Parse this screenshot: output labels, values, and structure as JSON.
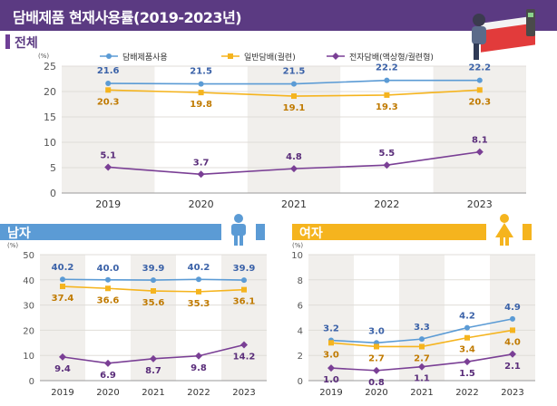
{
  "title": "담배제품 현재사용률(2019-2023년)",
  "sections": {
    "overall": "전체",
    "male": "남자",
    "female": "여자"
  },
  "colors": {
    "header": "#5b3a82",
    "male_bar": "#5b9bd5",
    "female_bar": "#f5b41e",
    "tobacco": "#5b9bd5",
    "cigarette": "#f5b41e",
    "ecig": "#7a3f95"
  },
  "legend": [
    "담배제품사용",
    "일반담배(궐련)",
    "전자담배(액상형/궐련형)"
  ],
  "chart_data": [
    {
      "id": "overall",
      "type": "line",
      "title": "전체",
      "unit": "(%)",
      "categories": [
        "2019",
        "2020",
        "2021",
        "2022",
        "2023"
      ],
      "ylim": [
        0,
        25
      ],
      "yticks": [
        "0",
        "5",
        "10",
        "15",
        "20",
        "25"
      ],
      "series": [
        {
          "name": "담배제품사용",
          "values": [
            21.6,
            21.5,
            21.5,
            22.2,
            22.2
          ],
          "labels": [
            "21.6",
            "21.5",
            "21.5",
            "22.2",
            "22.2"
          ]
        },
        {
          "name": "일반담배(궐련)",
          "values": [
            20.3,
            19.8,
            19.1,
            19.3,
            20.3
          ],
          "labels": [
            "20.3",
            "19.8",
            "19.1",
            "19.3",
            "20.3"
          ]
        },
        {
          "name": "전자담배(액상형/궐련형)",
          "values": [
            5.1,
            3.7,
            4.8,
            5.5,
            8.1
          ],
          "labels": [
            "5.1",
            "3.7",
            "4.8",
            "5.5",
            "8.1"
          ]
        }
      ]
    },
    {
      "id": "male",
      "type": "line",
      "title": "남자",
      "unit": "(%)",
      "categories": [
        "2019",
        "2020",
        "2021",
        "2022",
        "2023"
      ],
      "ylim": [
        0,
        50
      ],
      "yticks": [
        "0",
        "10",
        "20",
        "30",
        "40",
        "50"
      ],
      "series": [
        {
          "name": "담배제품사용",
          "values": [
            40.2,
            40.0,
            39.9,
            40.2,
            39.9
          ],
          "labels": [
            "40.2",
            "40.0",
            "39.9",
            "40.2",
            "39.9"
          ]
        },
        {
          "name": "일반담배(궐련)",
          "values": [
            37.4,
            36.6,
            35.6,
            35.3,
            36.1
          ],
          "labels": [
            "37.4",
            "36.6",
            "35.6",
            "35.3",
            "36.1"
          ]
        },
        {
          "name": "전자담배(액상형/궐련형)",
          "values": [
            9.4,
            6.9,
            8.7,
            9.8,
            14.2
          ],
          "labels": [
            "9.4",
            "6.9",
            "8.7",
            "9.8",
            "14.2"
          ]
        }
      ]
    },
    {
      "id": "female",
      "type": "line",
      "title": "여자",
      "unit": "(%)",
      "categories": [
        "2019",
        "2020",
        "2021",
        "2022",
        "2023"
      ],
      "ylim": [
        0,
        10
      ],
      "yticks": [
        "0",
        "2",
        "4",
        "6",
        "8",
        "10"
      ],
      "series": [
        {
          "name": "담배제품사용",
          "values": [
            3.2,
            3.0,
            3.3,
            4.2,
            4.9
          ],
          "labels": [
            "3.2",
            "3.0",
            "3.3",
            "4.2",
            "4.9"
          ]
        },
        {
          "name": "일반담배(궐련)",
          "values": [
            3.0,
            2.7,
            2.7,
            3.4,
            4.0
          ],
          "labels": [
            "3.0",
            "2.7",
            "2.7",
            "3.4",
            "4.0"
          ]
        },
        {
          "name": "전자담배(액상형/궐련형)",
          "values": [
            1.0,
            0.8,
            1.1,
            1.5,
            2.1
          ],
          "labels": [
            "1.0",
            "0.8",
            "1.1",
            "1.5",
            "2.1"
          ]
        }
      ]
    }
  ]
}
